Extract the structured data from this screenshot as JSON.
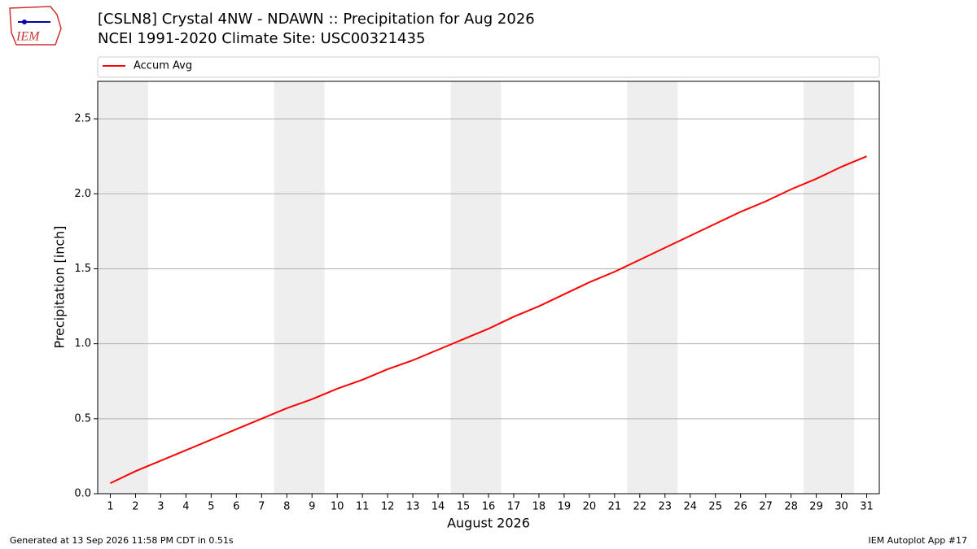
{
  "chart_data": {
    "type": "line",
    "title": "[CSLN8] Crystal 4NW - NDAWN :: Precipitation for Aug 2026",
    "subtitle": "NCEI 1991-2020 Climate Site: USC00321435",
    "logo_text": "IEM",
    "x_label": "August 2026",
    "y_label": "Precipitation [inch]",
    "footer_left": "Generated at 13 Sep 2026 11:58 PM CDT in 0.51s",
    "footer_right": "IEM Autoplot App #17",
    "x": [
      1,
      2,
      3,
      4,
      5,
      6,
      7,
      8,
      9,
      10,
      11,
      12,
      13,
      14,
      15,
      16,
      17,
      18,
      19,
      20,
      21,
      22,
      23,
      24,
      25,
      26,
      27,
      28,
      29,
      30,
      31
    ],
    "series": [
      {
        "name": "Accum Avg",
        "color": "#ff0000",
        "values": [
          0.07,
          0.15,
          0.22,
          0.29,
          0.36,
          0.43,
          0.5,
          0.57,
          0.63,
          0.7,
          0.76,
          0.83,
          0.89,
          0.96,
          1.03,
          1.1,
          1.18,
          1.25,
          1.33,
          1.41,
          1.48,
          1.56,
          1.64,
          1.72,
          1.8,
          1.88,
          1.95,
          2.03,
          2.1,
          2.18,
          2.25
        ]
      }
    ],
    "xlim": [
      0.5,
      31.5
    ],
    "xticks": [
      1,
      2,
      3,
      4,
      5,
      6,
      7,
      8,
      9,
      10,
      11,
      12,
      13,
      14,
      15,
      16,
      17,
      18,
      19,
      20,
      21,
      22,
      23,
      24,
      25,
      26,
      27,
      28,
      29,
      30,
      31
    ],
    "ylim": [
      0,
      2.75
    ],
    "yticks": [
      {
        "value": 0,
        "label": "0.0"
      },
      0.5,
      {
        "value": 1,
        "label": "1.0"
      },
      1.5,
      {
        "value": 2,
        "label": "2.0"
      },
      2.5
    ],
    "shaded_spans": [
      [
        0.5,
        2.5
      ],
      [
        7.5,
        9.5
      ],
      [
        14.5,
        16.5
      ],
      [
        21.5,
        23.5
      ],
      [
        28.5,
        30.5
      ]
    ],
    "grid": true,
    "legend": "top"
  }
}
